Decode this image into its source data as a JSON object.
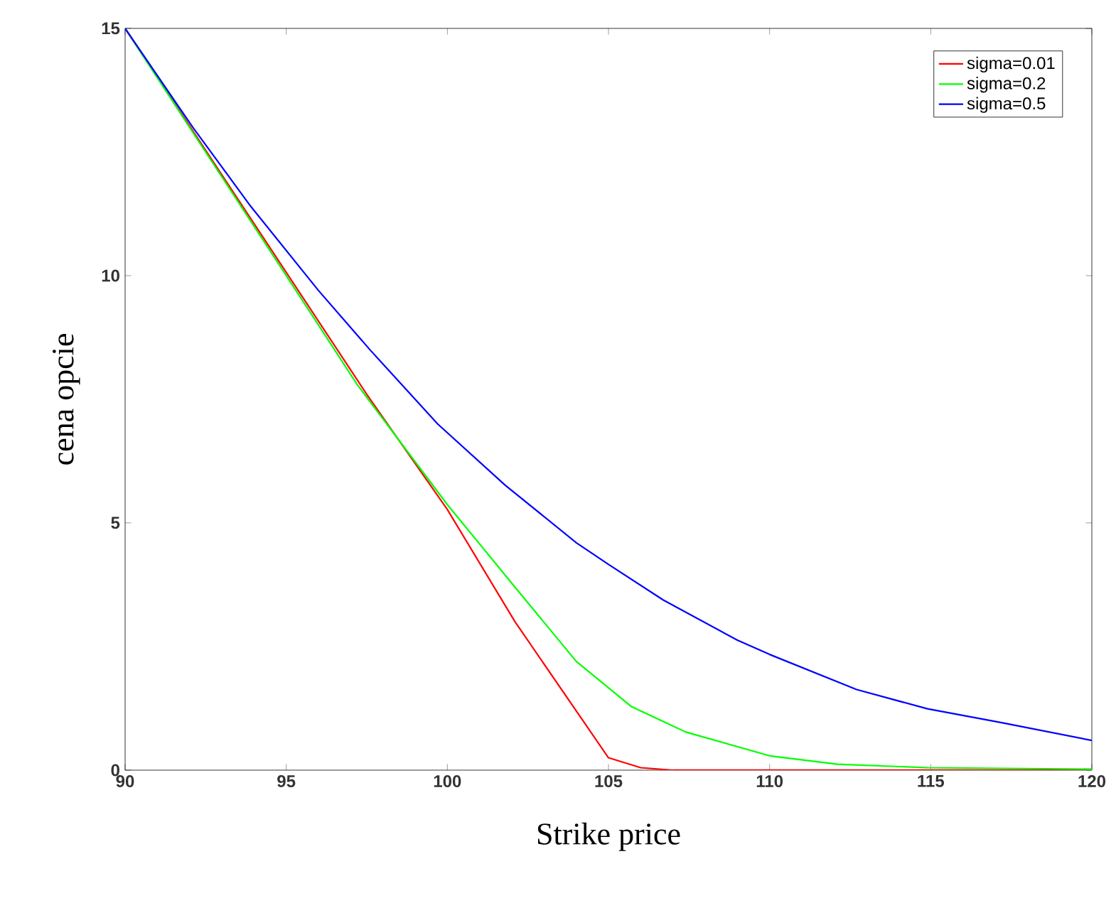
{
  "chart_data": {
    "type": "line",
    "xlabel": "Strike price",
    "ylabel": "cena opcie",
    "xlim": [
      90,
      120
    ],
    "ylim": [
      0,
      15
    ],
    "xticks": [
      90,
      95,
      100,
      105,
      110,
      115,
      120
    ],
    "yticks": [
      0,
      5,
      10,
      15
    ],
    "legend": "top right",
    "grid": false,
    "series": [
      {
        "name": "sigma=0.01",
        "color": "#ff0000",
        "x": [
          90,
          97.5,
          100,
          102.1,
          105,
          106,
          107,
          120
        ],
        "values": [
          15,
          7.6,
          5.27,
          3.0,
          0.25,
          0.05,
          0,
          0
        ]
      },
      {
        "name": "sigma=0.2",
        "color": "#00ff00",
        "x": [
          90,
          92.7,
          95.7,
          97.2,
          100,
          102.1,
          104,
          105.7,
          107.4,
          110,
          112.1,
          114.9,
          120
        ],
        "values": [
          15,
          12.3,
          9.3,
          7.8,
          5.37,
          3.7,
          2.2,
          1.29,
          0.77,
          0.29,
          0.12,
          0.05,
          0.02
        ]
      },
      {
        "name": "sigma=0.5",
        "color": "#0000ff",
        "x": [
          90,
          92.1,
          93.9,
          96,
          97.6,
          99.7,
          101.8,
          104,
          105,
          106.7,
          109,
          110,
          112.7,
          114.9,
          117.2,
          120
        ],
        "values": [
          15,
          13.0,
          11.4,
          9.7,
          8.5,
          7.0,
          5.76,
          4.6,
          4.16,
          3.44,
          2.63,
          2.34,
          1.63,
          1.24,
          0.96,
          0.6
        ]
      }
    ]
  }
}
